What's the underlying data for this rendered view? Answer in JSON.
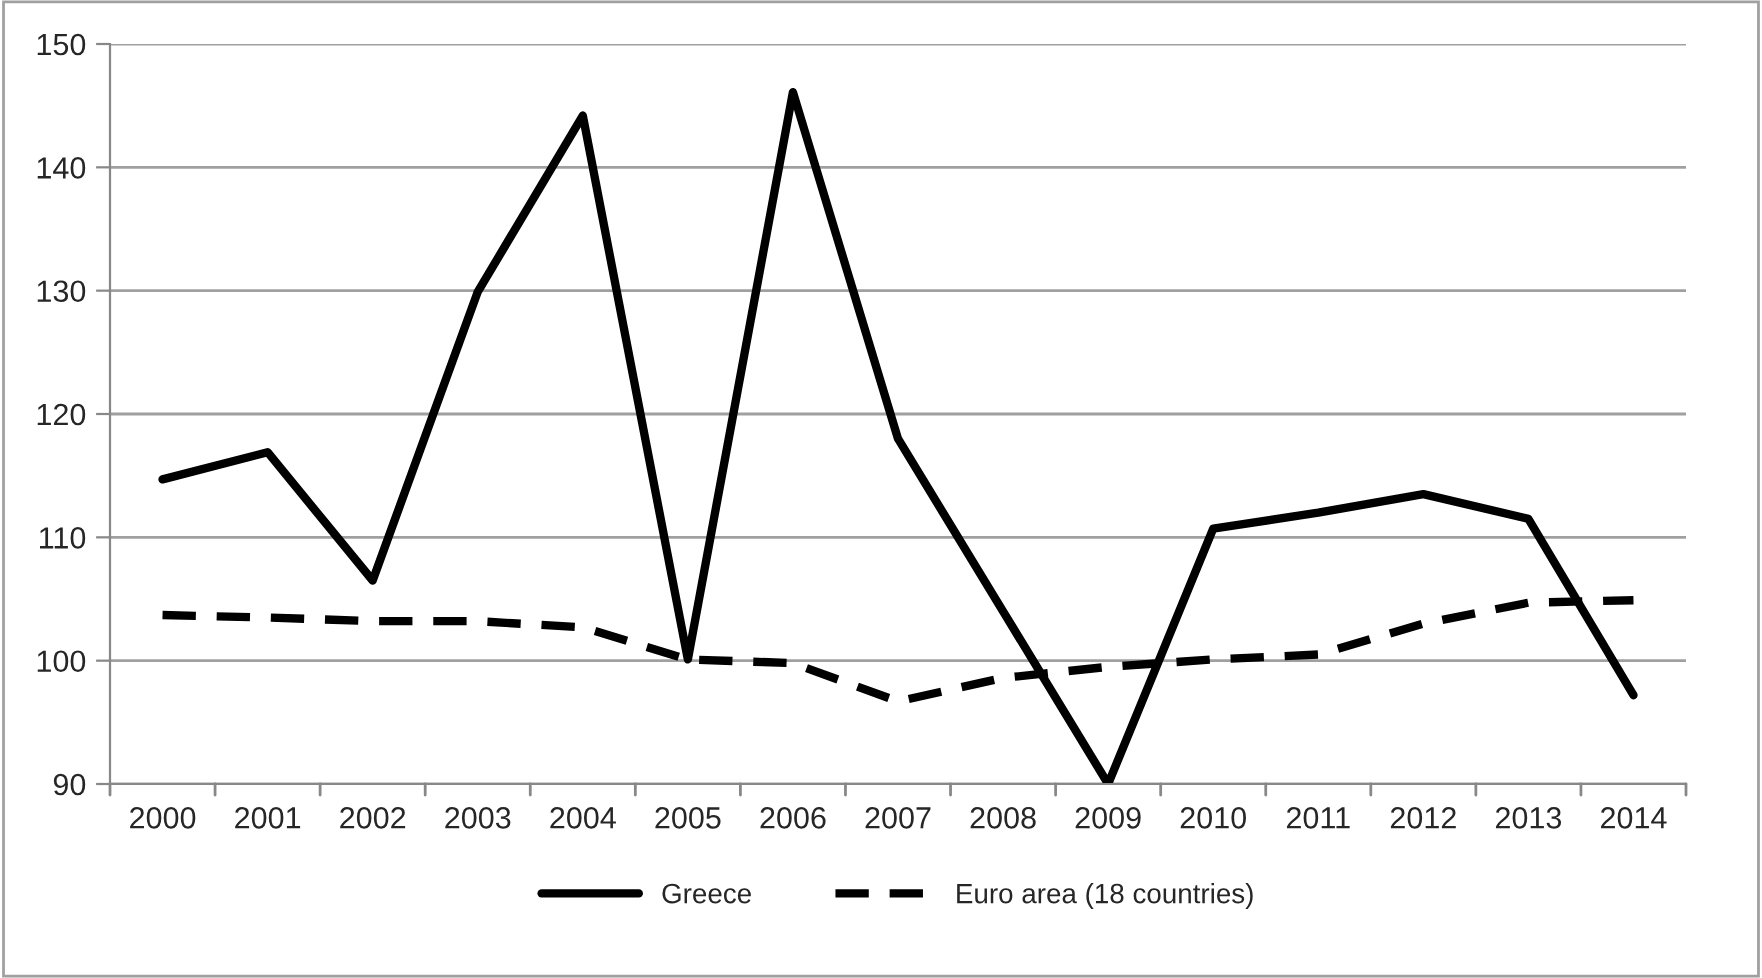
{
  "chart_data": {
    "type": "line",
    "categories": [
      "2000",
      "2001",
      "2002",
      "2003",
      "2004",
      "2005",
      "2006",
      "2007",
      "2008",
      "2009",
      "2010",
      "2011",
      "2012",
      "2013",
      "2014"
    ],
    "series": [
      {
        "name": "Greece",
        "color": "#000000",
        "line_style": "solid",
        "values": [
          114.7,
          116.9,
          106.5,
          129.9,
          144.2,
          100.1,
          146.1,
          118.0,
          104.0,
          90,
          110.7,
          112.0,
          113.5,
          111.5,
          97.2
        ]
      },
      {
        "name": "Euro area (18 countries)",
        "color": "#000000",
        "line_style": "dashed",
        "values": [
          103.7,
          103.5,
          103.2,
          103.2,
          102.7,
          100.1,
          99.8,
          96.7,
          98.6,
          99.5,
          100.1,
          100.5,
          103.0,
          104.7,
          104.9
        ]
      }
    ],
    "ylim": [
      90,
      150
    ],
    "yticks": [
      90,
      100,
      110,
      120,
      130,
      140,
      150
    ],
    "grid": "y",
    "legend": "bottom",
    "marker": "none"
  }
}
